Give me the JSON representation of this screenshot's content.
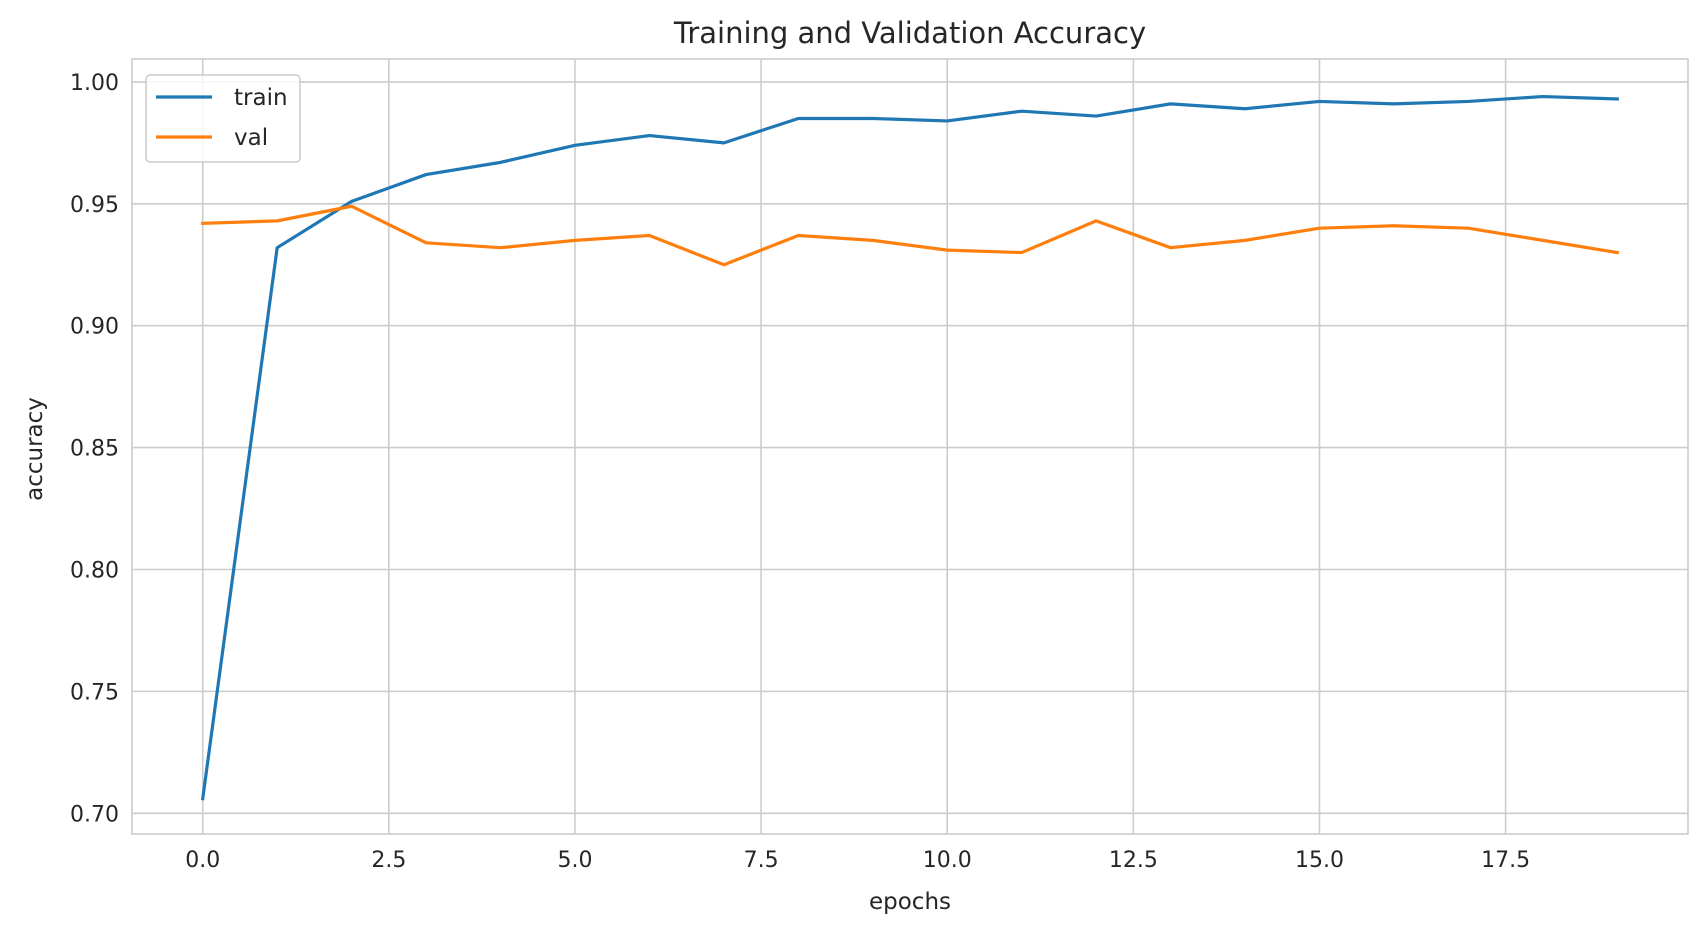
{
  "chart_data": {
    "type": "line",
    "title": "Training and Validation Accuracy",
    "xlabel": "epochs",
    "ylabel": "accuracy",
    "xlim": [
      -0.95,
      19.95
    ],
    "ylim": [
      0.6915,
      1.0094
    ],
    "xticks": [
      0.0,
      2.5,
      5.0,
      7.5,
      10.0,
      12.5,
      15.0,
      17.5
    ],
    "xtick_labels": [
      "0.0",
      "2.5",
      "5.0",
      "7.5",
      "10.0",
      "12.5",
      "15.0",
      "17.5"
    ],
    "yticks": [
      0.7,
      0.75,
      0.8,
      0.85,
      0.9,
      0.95,
      1.0
    ],
    "ytick_labels": [
      "0.70",
      "0.75",
      "0.80",
      "0.85",
      "0.90",
      "0.95",
      "1.00"
    ],
    "grid": true,
    "legend_position": "top-left",
    "x": [
      0,
      1,
      2,
      3,
      4,
      5,
      6,
      7,
      8,
      9,
      10,
      11,
      12,
      13,
      14,
      15,
      16,
      17,
      18,
      19
    ],
    "series": [
      {
        "name": "train",
        "color": "#1f77b4",
        "values": [
          0.706,
          0.932,
          0.951,
          0.962,
          0.967,
          0.974,
          0.978,
          0.975,
          0.985,
          0.985,
          0.984,
          0.988,
          0.986,
          0.991,
          0.989,
          0.992,
          0.991,
          0.992,
          0.994,
          0.993
        ]
      },
      {
        "name": "val",
        "color": "#ff7f0e",
        "values": [
          0.942,
          0.943,
          0.949,
          0.934,
          0.932,
          0.935,
          0.937,
          0.925,
          0.937,
          0.935,
          0.931,
          0.93,
          0.943,
          0.932,
          0.935,
          0.94,
          0.941,
          0.94,
          0.935,
          0.93
        ]
      }
    ]
  }
}
